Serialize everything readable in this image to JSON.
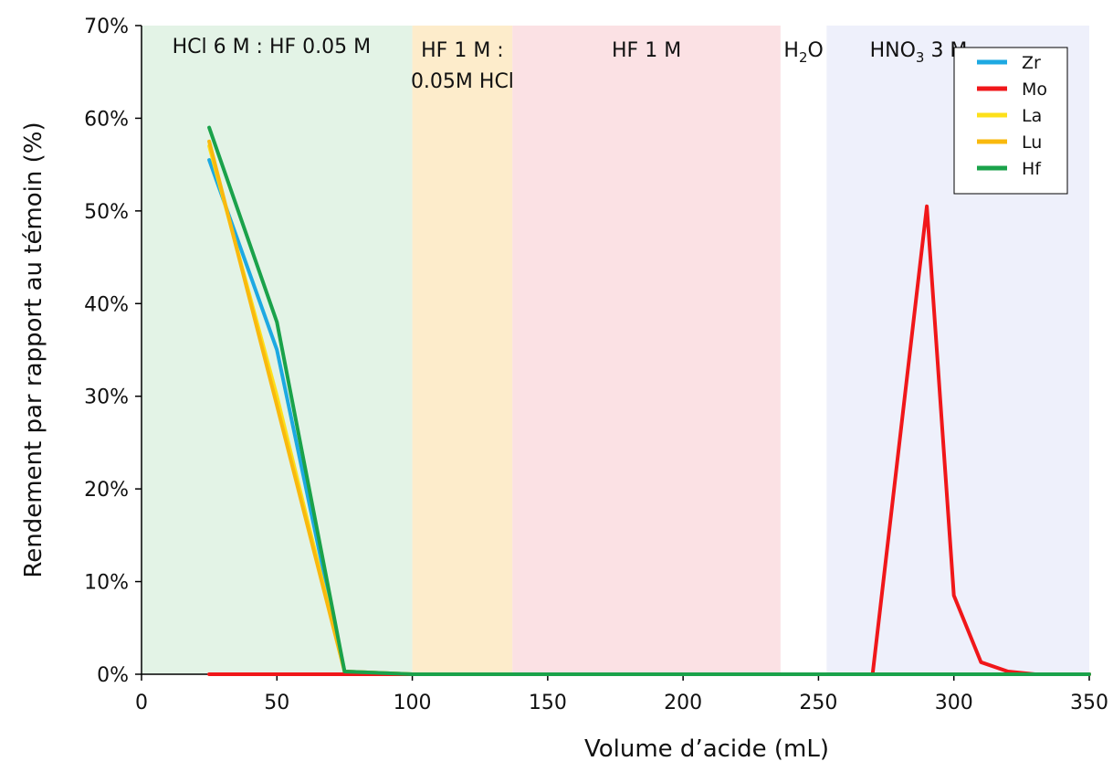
{
  "chart_data": {
    "type": "line",
    "title": "",
    "xlabel": "Volume d’acide (mL)",
    "ylabel": "Rendement par rapport au témoin (%)",
    "xlim": [
      0,
      350
    ],
    "ylim": [
      0,
      70
    ],
    "x_ticks": [
      0,
      50,
      100,
      150,
      200,
      250,
      300,
      350
    ],
    "y_ticks": [
      0,
      10,
      20,
      30,
      40,
      50,
      60,
      70
    ],
    "y_tick_labels": [
      "0%",
      "10%",
      "20%",
      "30%",
      "40%",
      "50%",
      "60%",
      "70%"
    ],
    "grid": false,
    "legend_position": "top-right",
    "regions": [
      {
        "x0": 0,
        "x1": 100,
        "color": "#e3f3e6",
        "label_lines": [
          {
            "base": "HCl 6 M : HF 0.05 M",
            "sub": "",
            "tail": ""
          }
        ]
      },
      {
        "x0": 100,
        "x1": 137,
        "color": "#fdeccb",
        "label_lines": [
          {
            "base": "HF 1 M :",
            "sub": "",
            "tail": ""
          },
          {
            "base": "0.05M HCl",
            "sub": "",
            "tail": ""
          }
        ]
      },
      {
        "x0": 137,
        "x1": 236,
        "color": "#fbe1e4",
        "label_lines": [
          {
            "base": "HF 1 M",
            "sub": "",
            "tail": ""
          }
        ]
      },
      {
        "x0": 236,
        "x1": 253,
        "color": "#ffffff",
        "label_lines": [
          {
            "base": "H",
            "sub": "2",
            "tail": "O"
          }
        ]
      },
      {
        "x0": 253,
        "x1": 350,
        "color": "#eef0fb",
        "label_lines": [
          {
            "base": "HNO",
            "sub": "3",
            "tail": " 3 M"
          }
        ]
      }
    ],
    "series": [
      {
        "name": "Zr",
        "color": "#1da9e2",
        "x": [
          25,
          50,
          75,
          100,
          350
        ],
        "y": [
          55.5,
          35,
          0.3,
          0,
          0
        ]
      },
      {
        "name": "Mo",
        "color": "#f0171a",
        "x": [
          25,
          250,
          270,
          290,
          300,
          310,
          320,
          330,
          350
        ],
        "y": [
          0,
          0,
          0,
          50.5,
          8.5,
          1.3,
          0.3,
          0,
          0
        ]
      },
      {
        "name": "La",
        "color": "#fde01a",
        "x": [
          25,
          50,
          75,
          100,
          350
        ],
        "y": [
          57,
          30,
          0.3,
          0,
          0
        ]
      },
      {
        "name": "Lu",
        "color": "#f9b90e",
        "x": [
          25,
          50,
          75,
          100,
          350
        ],
        "y": [
          57.5,
          29,
          0.3,
          0,
          0
        ]
      },
      {
        "name": "Hf",
        "color": "#1aa24a",
        "x": [
          25,
          50,
          75,
          100,
          350
        ],
        "y": [
          59,
          38,
          0.3,
          0,
          0
        ]
      }
    ]
  }
}
